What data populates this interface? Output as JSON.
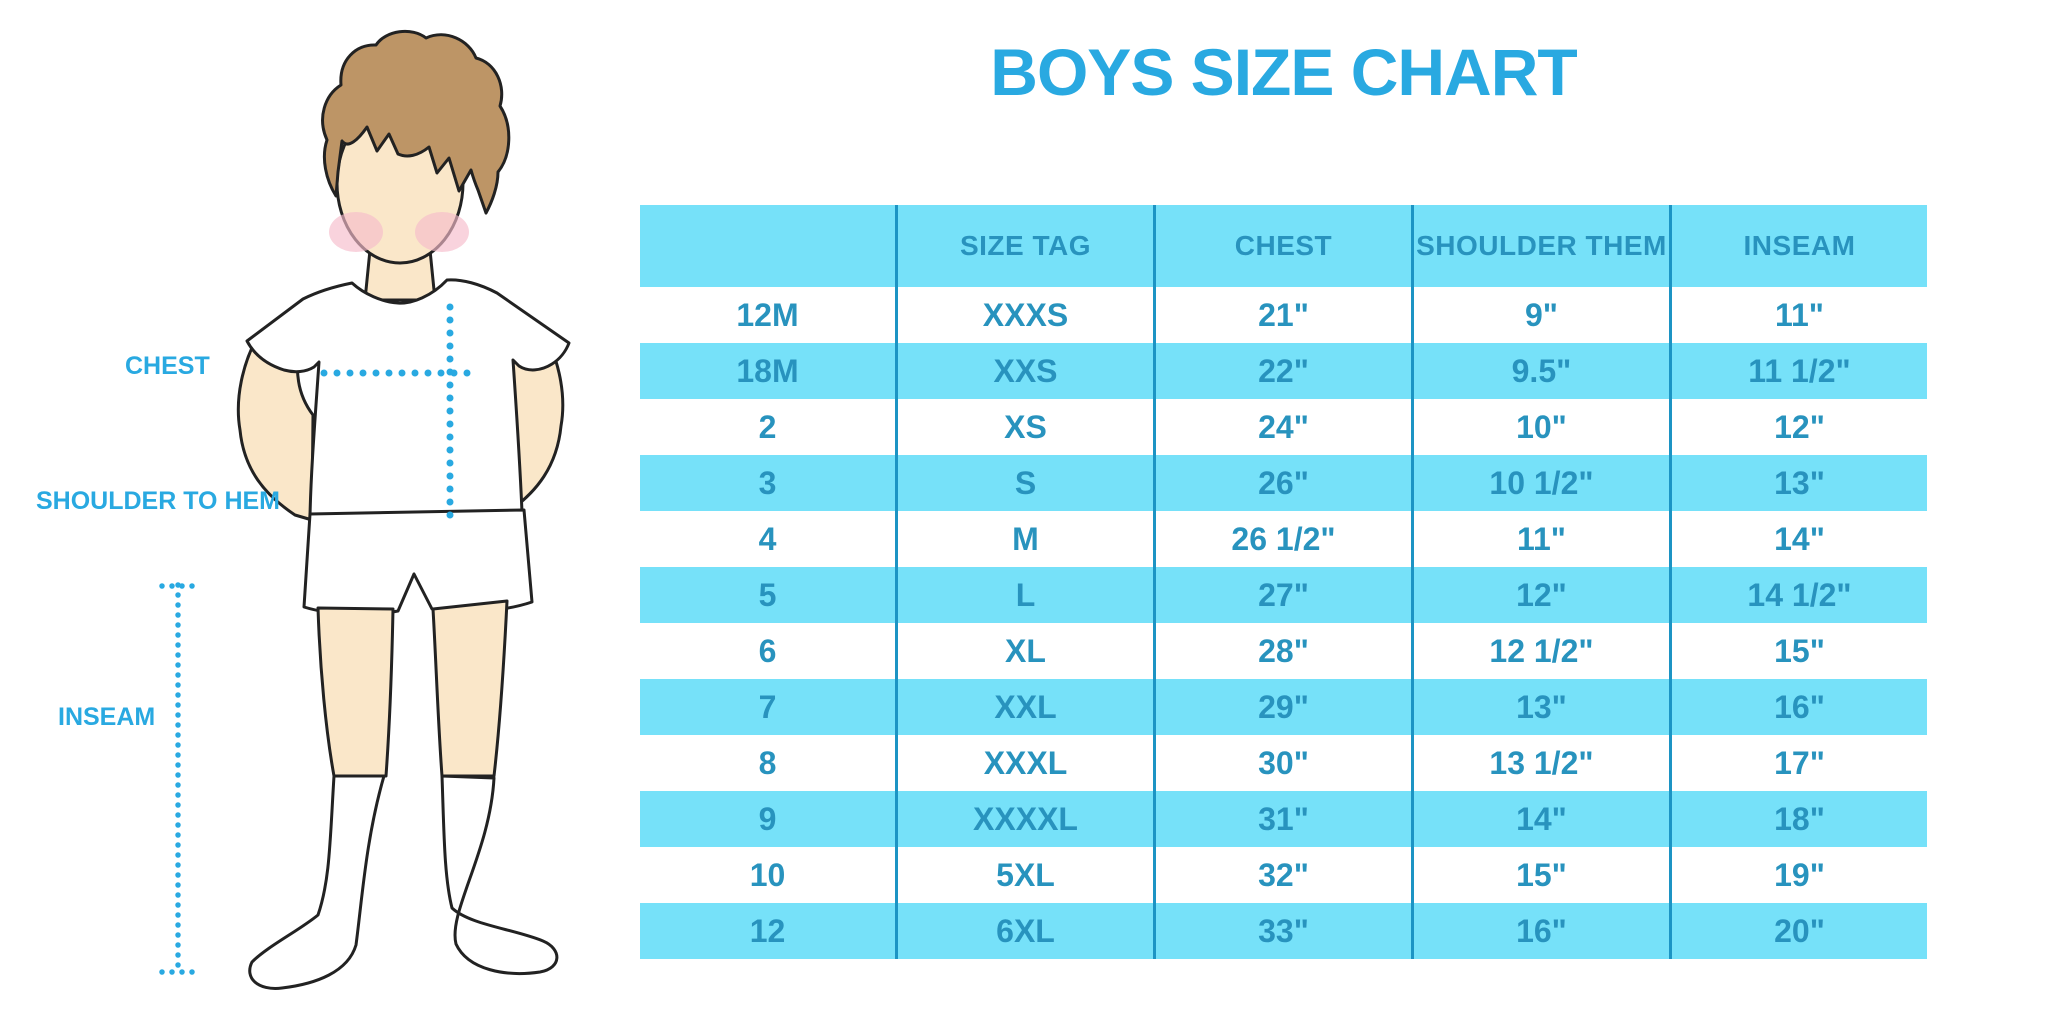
{
  "title": "BOYS SIZE CHART",
  "colors": {
    "accent": "#29a9e1",
    "row_blue": "#76e1f9",
    "cell_text": "#2893be",
    "divider": "#1c94c4",
    "skin": "#fae7c9",
    "hair": "#bd9566",
    "blush": "#f6bccb",
    "outline": "#222222"
  },
  "diagram": {
    "labels": {
      "chest": "CHEST",
      "shoulder_to_hem": "SHOULDER TO HEM",
      "inseam": "INSEAM"
    }
  },
  "chart_data": {
    "type": "table",
    "title": "BOYS SIZE CHART",
    "columns": [
      "",
      "SIZE TAG",
      "CHEST",
      "SHOULDER THEM",
      "INSEAM"
    ],
    "rows": [
      [
        "12M",
        "XXXS",
        "21\"",
        "9\"",
        "11\""
      ],
      [
        "18M",
        "XXS",
        "22\"",
        "9.5\"",
        "11 1/2\""
      ],
      [
        "2",
        "XS",
        "24\"",
        "10\"",
        "12\""
      ],
      [
        "3",
        "S",
        "26\"",
        "10 1/2\"",
        "13\""
      ],
      [
        "4",
        "M",
        "26 1/2\"",
        "11\"",
        "14\""
      ],
      [
        "5",
        "L",
        "27\"",
        "12\"",
        "14 1/2\""
      ],
      [
        "6",
        "XL",
        "28\"",
        "12 1/2\"",
        "15\""
      ],
      [
        "7",
        "XXL",
        "29\"",
        "13\"",
        "16\""
      ],
      [
        "8",
        "XXXL",
        "30\"",
        "13 1/2\"",
        "17\""
      ],
      [
        "9",
        "XXXXL",
        "31\"",
        "14\"",
        "18\""
      ],
      [
        "10",
        "5XL",
        "32\"",
        "15\"",
        "19\""
      ],
      [
        "12",
        "6XL",
        "33\"",
        "16\"",
        "20\""
      ]
    ],
    "layout": {
      "alternating_rows": "white/light-blue",
      "grid": "vertical-dividers-only",
      "legend": "none"
    }
  }
}
